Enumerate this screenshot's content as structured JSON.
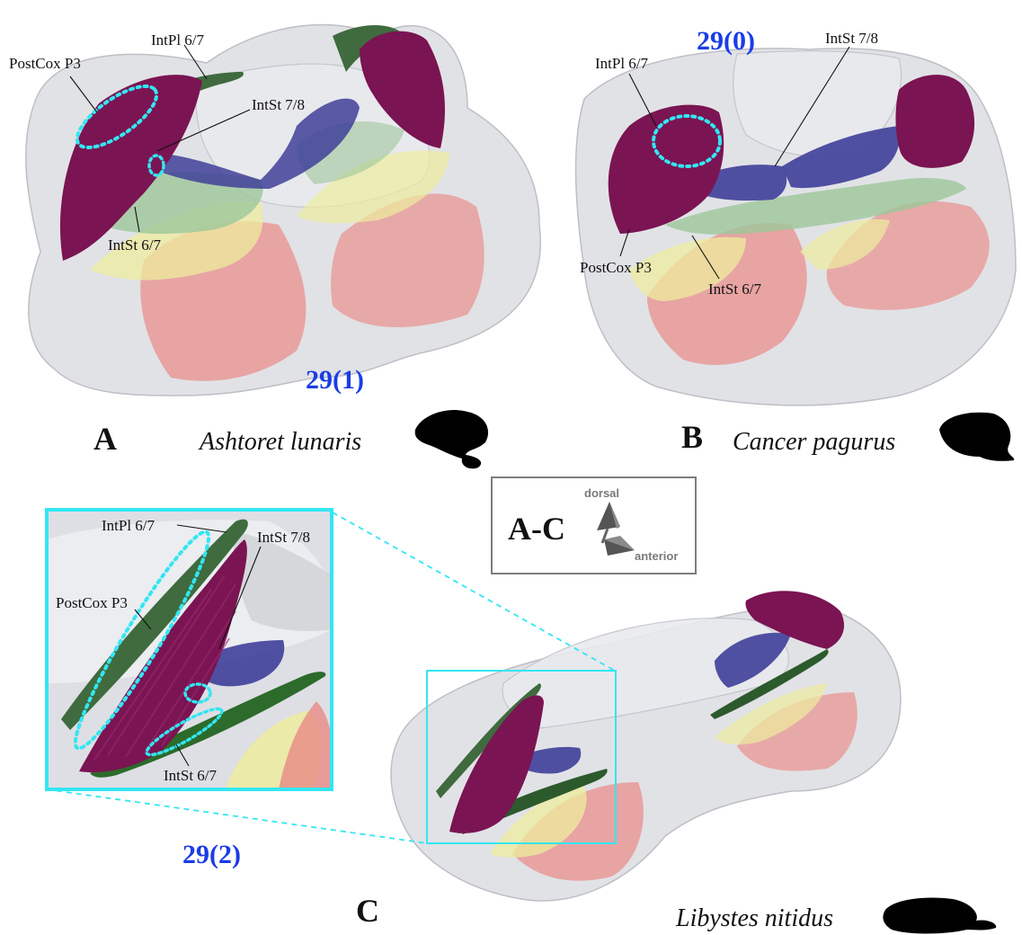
{
  "colors": {
    "postcox": "#7a1452",
    "intpl": "#3f6b3f",
    "intst78": "#3f3f99",
    "intst67": "#9ec79a",
    "yellow": "#eeec9e",
    "red": "#e98a86",
    "highlight": "#33e6f2",
    "code": "#1a3de6"
  },
  "panel_a": {
    "letter": "A",
    "species": "Ashtoret lunaris",
    "code": "29(1)",
    "labels": {
      "postcox": "PostCox P3",
      "intpl": "IntPl 6/7",
      "intst78": "IntSt 7/8",
      "intst67": "IntSt 6/7"
    }
  },
  "panel_b": {
    "letter": "B",
    "species": "Cancer pagurus",
    "code": "29(0)",
    "labels": {
      "postcox": "PostCox P3",
      "intpl": "IntPl 6/7",
      "intst78": "IntSt 7/8",
      "intst67": "IntSt 6/7"
    }
  },
  "panel_c": {
    "letter": "C",
    "species": "Libystes nitidus",
    "code": "29(2)",
    "labels": {
      "postcox": "PostCox P3",
      "intpl": "IntPl 6/7",
      "intst78": "IntSt 7/8",
      "intst67": "IntSt 6/7"
    }
  },
  "orientation": {
    "range": "A-C",
    "dorsal": "dorsal",
    "anterior": "anterior"
  }
}
